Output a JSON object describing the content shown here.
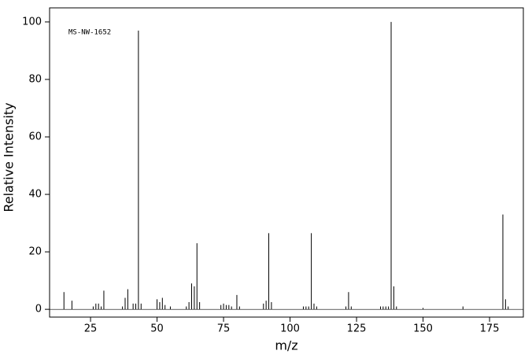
{
  "chart_data": {
    "type": "stem",
    "annotation": "MS-NW-1652",
    "x_label": "m/z",
    "y_label": "Relative Intensity",
    "color": "#000000",
    "x": [
      15,
      18,
      26,
      27,
      28,
      29,
      30,
      37,
      38,
      39,
      41,
      42,
      43,
      44,
      50,
      51,
      52,
      53,
      55,
      61,
      62,
      63,
      64,
      65,
      66,
      74,
      75,
      76,
      77,
      78,
      80,
      81,
      90,
      91,
      92,
      93,
      105,
      106,
      107,
      108,
      109,
      110,
      121,
      122,
      123,
      134,
      135,
      136,
      137,
      138,
      139,
      140,
      150,
      165,
      180,
      181,
      182
    ],
    "values": [
      6,
      3,
      1,
      2,
      2,
      1,
      6.5,
      1,
      4,
      7,
      2,
      2,
      97,
      2,
      3.5,
      2.5,
      4,
      1.5,
      1,
      1,
      2.5,
      9,
      8,
      23,
      2.5,
      1.5,
      2,
      1.5,
      1.5,
      1,
      5,
      1,
      2,
      3,
      26.5,
      2.5,
      1,
      1,
      1,
      26.5,
      2,
      1,
      1,
      6,
      1,
      1,
      1,
      1,
      1,
      100,
      8,
      1,
      0.5,
      1,
      33,
      3.5,
      1
    ],
    "xlim": [
      9.6,
      187.7
    ],
    "ylim": [
      -2.7,
      104.9
    ],
    "xticks": [
      25,
      50,
      75,
      100,
      125,
      150,
      175
    ],
    "yticks": [
      0,
      20,
      40,
      60,
      80,
      100
    ]
  }
}
